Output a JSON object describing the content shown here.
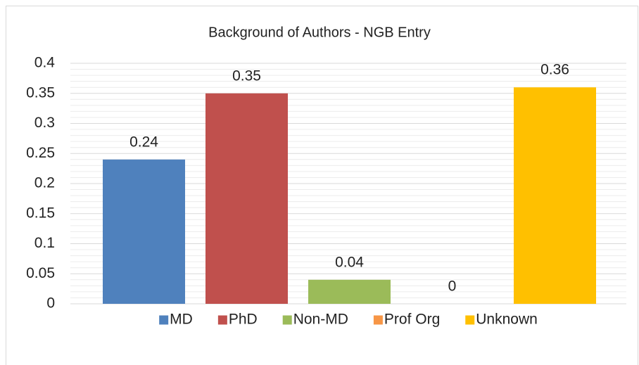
{
  "chart_data": {
    "type": "bar",
    "title": "Background of Authors - NGB Entry",
    "categories": [
      null
    ],
    "series": [
      {
        "name": "MD",
        "color": "#4f81bd",
        "values": [
          0.24
        ]
      },
      {
        "name": "PhD",
        "color": "#c0504d",
        "values": [
          0.35
        ]
      },
      {
        "name": "Non-MD",
        "color": "#9bbb59",
        "values": [
          0.04
        ]
      },
      {
        "name": "Prof Org",
        "color": "#f79646",
        "values": [
          0
        ]
      },
      {
        "name": "Unknown",
        "color": "#ffc000",
        "values": [
          0.36
        ]
      }
    ],
    "ylim": [
      0,
      0.4
    ],
    "yticks": [
      0,
      0.05,
      0.1,
      0.15,
      0.2,
      0.25,
      0.3,
      0.35,
      0.4
    ],
    "grid": true,
    "minor_grid": true,
    "legend": "bottom"
  }
}
